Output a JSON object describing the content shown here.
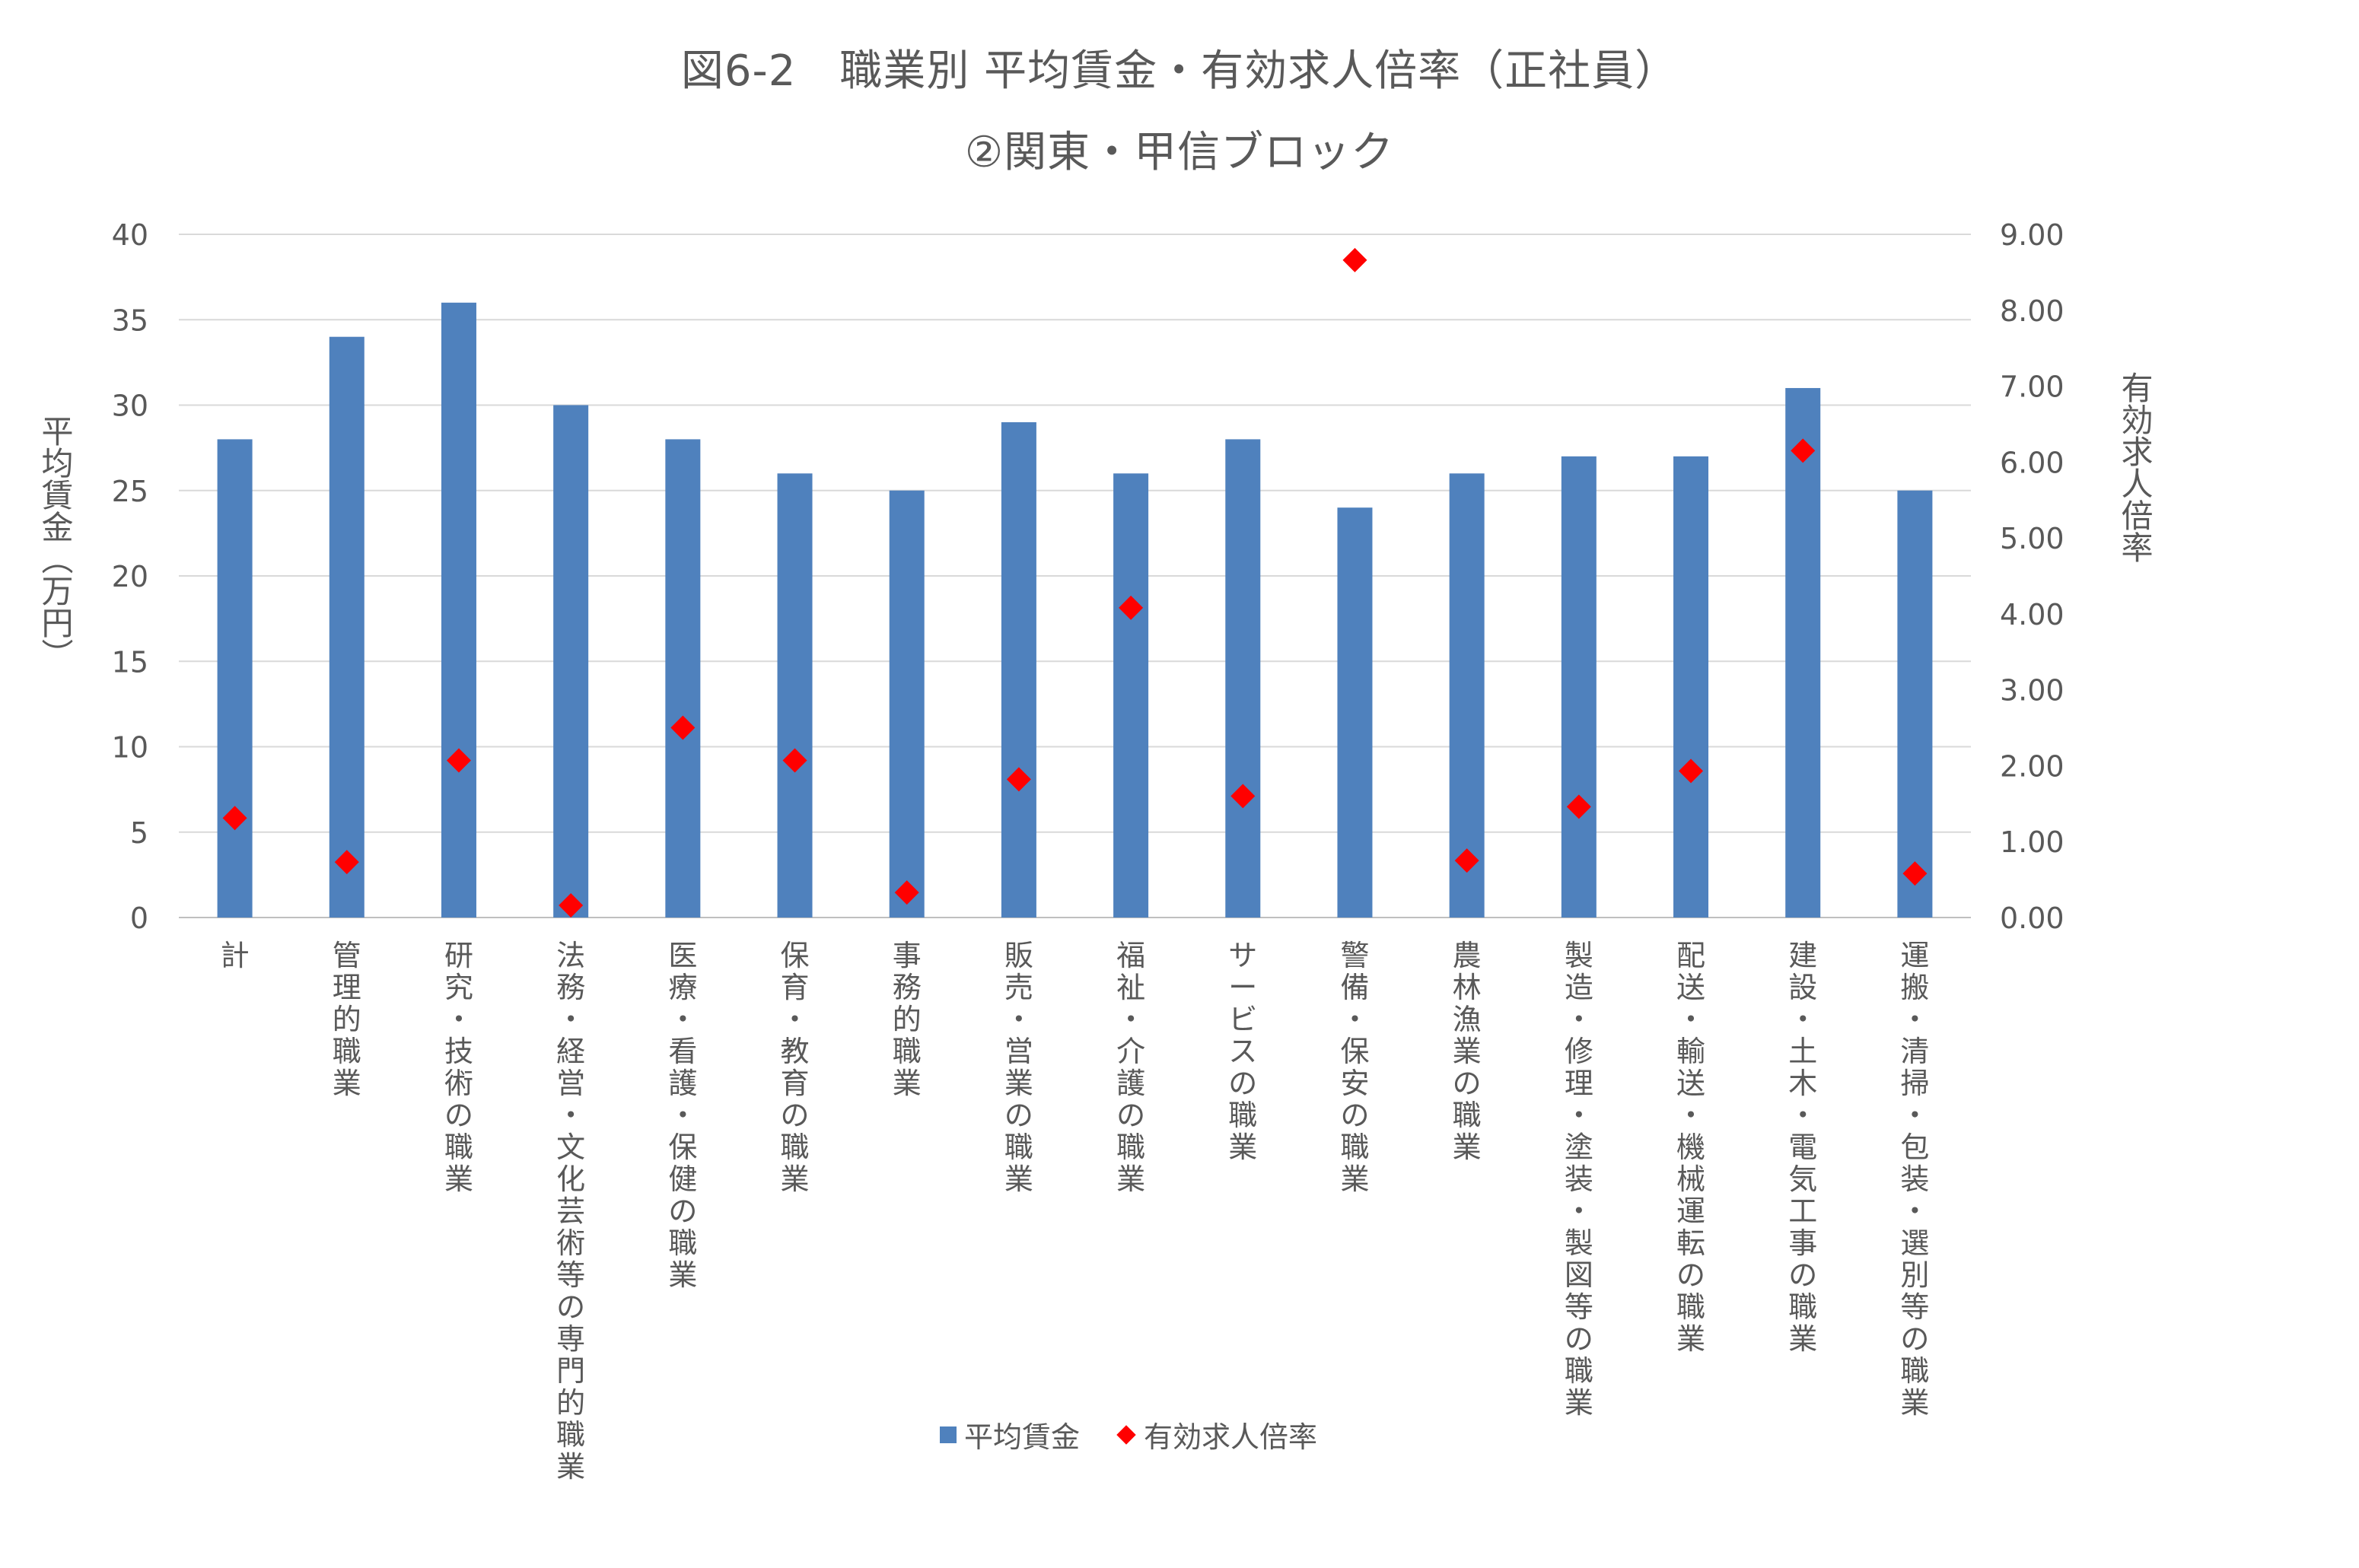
{
  "chart_data": {
    "type": "bar",
    "title": "図6-2　職業別 平均賃金・有効求人倍率（正社員）",
    "subtitle": "②関東・甲信ブロック",
    "ylabel": "平均賃金（万円）",
    "y2label": "有効求人倍率",
    "ylim": [
      0,
      40
    ],
    "y2lim": [
      0,
      9
    ],
    "yticks": [
      "0",
      "5",
      "10",
      "15",
      "20",
      "25",
      "30",
      "35",
      "40"
    ],
    "y2ticks": [
      "0.00",
      "1.00",
      "2.00",
      "3.00",
      "4.00",
      "5.00",
      "6.00",
      "7.00",
      "8.00",
      "9.00"
    ],
    "grid": true,
    "legend_position": "bottom",
    "categories": [
      "計",
      "管理的職業",
      "研究・技術の職業",
      "法務・経営・文化芸術等の専門的職業",
      "医療・看護・保健の職業",
      "保育・教育の職業",
      "事務的職業",
      "販売・営業の職業",
      "福祉・介護の職業",
      "サービスの職業",
      "警備・保安の職業",
      "農林漁業の職業",
      "製造・修理・塗装・製図等の職業",
      "配送・輸送・機械運転の職業",
      "建設・土木・電気工事の職業",
      "運搬・清掃・包装・選別等の職業"
    ],
    "series": [
      {
        "name": "平均賃金",
        "type": "bar",
        "axis": "left",
        "color": "#4f81bd",
        "values": [
          28,
          34,
          36,
          30,
          28,
          26,
          25,
          29,
          26,
          28,
          24,
          26,
          27,
          27,
          31,
          25
        ]
      },
      {
        "name": "有効求人倍率",
        "type": "scatter",
        "marker": "diamond",
        "axis": "right",
        "color": "#ff0000",
        "values": [
          1.31,
          0.73,
          2.07,
          0.16,
          2.5,
          2.07,
          0.33,
          1.82,
          4.08,
          1.6,
          8.66,
          0.75,
          1.46,
          1.93,
          6.15,
          0.58
        ]
      }
    ]
  }
}
